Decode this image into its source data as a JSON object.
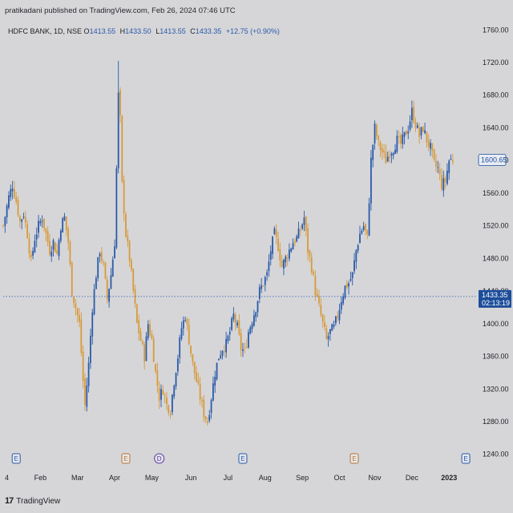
{
  "header": {
    "published_line": "pratikadani published on TradingView.com, Feb 26, 2024 07:46 UTC"
  },
  "legend": {
    "symbol": "HDFC BANK, 1D, NSE",
    "open_label": "O",
    "open": "1413.55",
    "high_label": "H",
    "high": "1433.50",
    "low_label": "L",
    "low": "1413.55",
    "close_label": "C",
    "close": "1433.35",
    "change": "+12.75 (+0.90%)"
  },
  "price_marks": {
    "current_price": "1433.35",
    "countdown": "02:13:19",
    "highlight_price": "1600.65"
  },
  "footer": {
    "logo_glyph": "17",
    "brand": "TradingView"
  },
  "colors": {
    "background": "#d6d6d9",
    "up_candle": "#2a5aa8",
    "down_candle": "#d79a3a",
    "price_tag": "#1d4d9a",
    "dotted_line": "#2a5aa8"
  },
  "chart_data": {
    "type": "candlestick",
    "y_ticks": [
      1240,
      1280,
      1320,
      1360,
      1400,
      1440,
      1480,
      1520,
      1560,
      1600,
      1640,
      1680,
      1720,
      1760
    ],
    "y_tick_labels": [
      "1240.00",
      "1280.00",
      "1320.00",
      "1360.00",
      "1400.00",
      "1440.00",
      "1480.00",
      "1520.00",
      "1560.00",
      "1600.00",
      "1640.00",
      "1680.00",
      "1720.00",
      "1760.00"
    ],
    "ylim": [
      1225,
      1775
    ],
    "x_labels": [
      "4",
      "Feb",
      "Mar",
      "Apr",
      "May",
      "Jun",
      "Jul",
      "Aug",
      "Sep",
      "Oct",
      "Nov",
      "Dec",
      "2023"
    ],
    "x_label_positions": [
      0,
      20,
      40,
      60,
      80,
      101,
      121,
      141,
      161,
      181,
      200,
      220,
      240
    ],
    "x_range": [
      0,
      255
    ],
    "event_markers": [
      {
        "label": "E",
        "x": 7,
        "kind": "earnings-blue"
      },
      {
        "label": "E",
        "x": 66,
        "kind": "earnings-orange"
      },
      {
        "label": "D",
        "x": 84,
        "kind": "dividend"
      },
      {
        "label": "E",
        "x": 129,
        "kind": "earnings-blue"
      },
      {
        "label": "E",
        "x": 189,
        "kind": "earnings-orange"
      },
      {
        "label": "E",
        "x": 249,
        "kind": "earnings-blue"
      }
    ],
    "close_path": [
      [
        0,
        1520
      ],
      [
        3,
        1555
      ],
      [
        5,
        1570
      ],
      [
        7,
        1550
      ],
      [
        9,
        1525
      ],
      [
        11,
        1535
      ],
      [
        13,
        1510
      ],
      [
        15,
        1475
      ],
      [
        17,
        1505
      ],
      [
        19,
        1520
      ],
      [
        21,
        1530
      ],
      [
        23,
        1510
      ],
      [
        25,
        1490
      ],
      [
        27,
        1500
      ],
      [
        29,
        1485
      ],
      [
        31,
        1520
      ],
      [
        33,
        1530
      ],
      [
        35,
        1500
      ],
      [
        37,
        1440
      ],
      [
        39,
        1420
      ],
      [
        41,
        1400
      ],
      [
        43,
        1330
      ],
      [
        44,
        1300
      ],
      [
        46,
        1350
      ],
      [
        48,
        1420
      ],
      [
        50,
        1460
      ],
      [
        52,
        1490
      ],
      [
        54,
        1470
      ],
      [
        56,
        1430
      ],
      [
        58,
        1460
      ],
      [
        60,
        1500
      ],
      [
        62,
        1680
      ],
      [
        63,
        1650
      ],
      [
        64,
        1570
      ],
      [
        66,
        1510
      ],
      [
        68,
        1480
      ],
      [
        70,
        1440
      ],
      [
        72,
        1400
      ],
      [
        74,
        1380
      ],
      [
        76,
        1360
      ],
      [
        78,
        1400
      ],
      [
        80,
        1380
      ],
      [
        82,
        1340
      ],
      [
        84,
        1310
      ],
      [
        86,
        1320
      ],
      [
        88,
        1300
      ],
      [
        90,
        1295
      ],
      [
        92,
        1330
      ],
      [
        94,
        1360
      ],
      [
        96,
        1395
      ],
      [
        98,
        1410
      ],
      [
        100,
        1380
      ],
      [
        102,
        1350
      ],
      [
        104,
        1330
      ],
      [
        106,
        1310
      ],
      [
        108,
        1290
      ],
      [
        110,
        1280
      ],
      [
        112,
        1310
      ],
      [
        114,
        1340
      ],
      [
        116,
        1360
      ],
      [
        118,
        1370
      ],
      [
        120,
        1375
      ],
      [
        122,
        1390
      ],
      [
        124,
        1410
      ],
      [
        126,
        1395
      ],
      [
        128,
        1370
      ],
      [
        130,
        1365
      ],
      [
        132,
        1390
      ],
      [
        134,
        1405
      ],
      [
        136,
        1420
      ],
      [
        138,
        1440
      ],
      [
        140,
        1450
      ],
      [
        142,
        1460
      ],
      [
        144,
        1490
      ],
      [
        146,
        1510
      ],
      [
        148,
        1495
      ],
      [
        150,
        1470
      ],
      [
        152,
        1480
      ],
      [
        154,
        1490
      ],
      [
        156,
        1500
      ],
      [
        158,
        1505
      ],
      [
        160,
        1515
      ],
      [
        162,
        1530
      ],
      [
        164,
        1490
      ],
      [
        166,
        1470
      ],
      [
        168,
        1440
      ],
      [
        170,
        1420
      ],
      [
        172,
        1400
      ],
      [
        174,
        1380
      ],
      [
        176,
        1390
      ],
      [
        178,
        1395
      ],
      [
        180,
        1410
      ],
      [
        182,
        1430
      ],
      [
        184,
        1445
      ],
      [
        186,
        1450
      ],
      [
        188,
        1460
      ],
      [
        190,
        1490
      ],
      [
        192,
        1510
      ],
      [
        194,
        1520
      ],
      [
        196,
        1505
      ],
      [
        198,
        1600
      ],
      [
        200,
        1640
      ],
      [
        202,
        1620
      ],
      [
        204,
        1610
      ],
      [
        206,
        1600
      ],
      [
        208,
        1610
      ],
      [
        210,
        1615
      ],
      [
        212,
        1625
      ],
      [
        214,
        1620
      ],
      [
        216,
        1630
      ],
      [
        218,
        1640
      ],
      [
        220,
        1660
      ],
      [
        222,
        1645
      ],
      [
        224,
        1630
      ],
      [
        226,
        1640
      ],
      [
        228,
        1625
      ],
      [
        230,
        1615
      ],
      [
        232,
        1595
      ],
      [
        234,
        1590
      ],
      [
        236,
        1570
      ],
      [
        238,
        1575
      ],
      [
        240,
        1600
      ],
      [
        242,
        1600.65
      ]
    ]
  }
}
